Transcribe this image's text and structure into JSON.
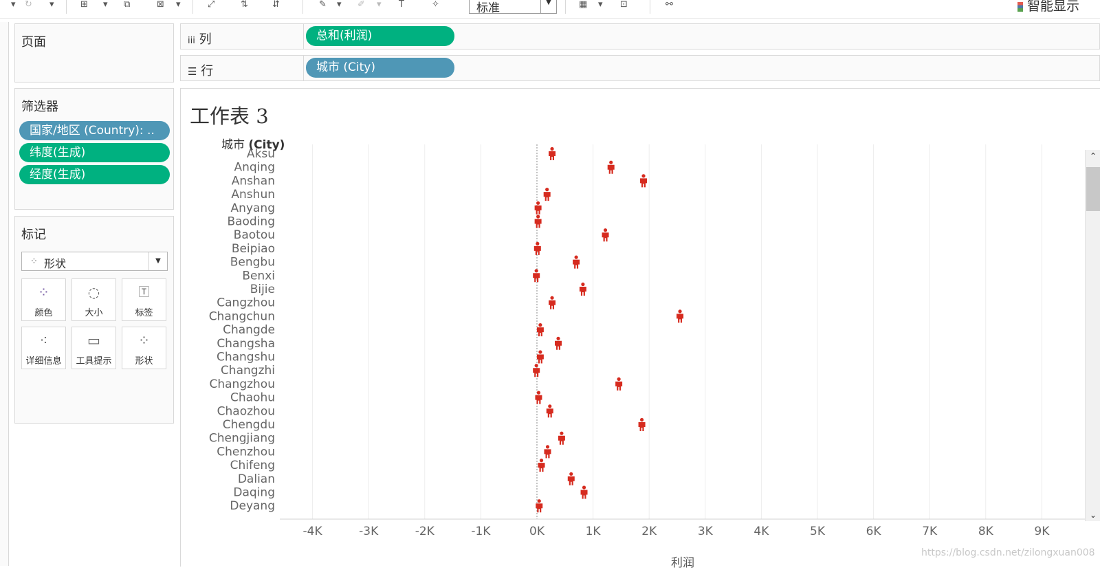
{
  "toolbar": {
    "view_select": "标准",
    "smart_show": "智能显示"
  },
  "panels": {
    "pages": "页面",
    "filters": {
      "title": "筛选器",
      "pills": [
        "国家/地区 (Country): ..",
        "纬度(生成)",
        "经度(生成)"
      ]
    },
    "marks": {
      "title": "标记",
      "mark_type": "形状",
      "cards": [
        "颜色",
        "大小",
        "标签",
        "详细信息",
        "工具提示",
        "形状"
      ]
    }
  },
  "shelves": {
    "columns": {
      "label": "列",
      "pill": "总和(利润)"
    },
    "rows": {
      "label": "行",
      "pill": "城市 (City)"
    }
  },
  "sheet": {
    "title": "工作表 3",
    "row_header": "城市",
    "row_header_bold": "(City)"
  },
  "watermark": "https://blog.csdn.net/zilongxuan008",
  "colors": {
    "mark": "#d62b1f",
    "pill_blue": "#4f97b6",
    "pill_green": "#00b180"
  },
  "chart_data": {
    "type": "scatter",
    "mark_shape": "person-icon",
    "xlabel": "利润",
    "ylabel": "城市 (City)",
    "xlim": [
      -4000,
      9000
    ],
    "xticks": [
      -4000,
      -3000,
      -2000,
      -1000,
      0,
      1000,
      2000,
      3000,
      4000,
      5000,
      6000,
      7000,
      8000,
      9000
    ],
    "xtick_labels": [
      "-4K",
      "-3K",
      "-2K",
      "-1K",
      "0K",
      "1K",
      "2K",
      "3K",
      "4K",
      "5K",
      "6K",
      "7K",
      "8K",
      "9K"
    ],
    "grid": "vertical",
    "categories": [
      "Aksu",
      "Anqing",
      "Anshan",
      "Anshun",
      "Anyang",
      "Baoding",
      "Baotou",
      "Beipiao",
      "Bengbu",
      "Benxi",
      "Bijie",
      "Cangzhou",
      "Changchun",
      "Changde",
      "Changsha",
      "Changshu",
      "Changzhi",
      "Changzhou",
      "Chaohu",
      "Chaozhou",
      "Chengdu",
      "Chengjiang",
      "Chenzhou",
      "Chifeng",
      "Dalian",
      "Daqing",
      "Deyang"
    ],
    "values": [
      270,
      1320,
      1900,
      180,
      20,
      20,
      1220,
      10,
      700,
      -10,
      820,
      270,
      2550,
      60,
      380,
      60,
      -10,
      1460,
      30,
      230,
      1870,
      440,
      190,
      80,
      610,
      840,
      40
    ]
  }
}
